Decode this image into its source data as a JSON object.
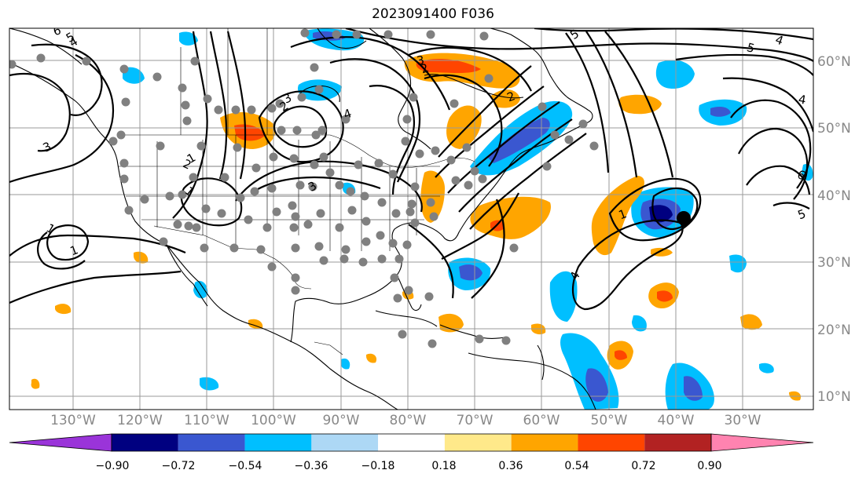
{
  "title": "2023091400 F036",
  "latitude_labels": [
    "60°N",
    "50°N",
    "40°N",
    "30°N",
    "20°N",
    "10°N"
  ],
  "longitude_labels": [
    "130°W",
    "120°W",
    "110°W",
    "100°W",
    "90°W",
    "80°W",
    "70°W",
    "60°W",
    "50°W",
    "40°W",
    "30°W"
  ],
  "colorbar": {
    "tick_labels": [
      "−0.90",
      "−0.72",
      "−0.54",
      "−0.36",
      "−0.18",
      "0.18",
      "0.36",
      "0.54",
      "0.72",
      "0.90"
    ],
    "colors": [
      "#9a34d9",
      "#000080",
      "#3a57d0",
      "#00bfff",
      "#add8f5",
      "#ffffff",
      "#ffe98a",
      "#ffa500",
      "#ff4500",
      "#b22222",
      "#ff83b0"
    ]
  },
  "contour_labels": [
    "6",
    "5",
    "4",
    "3",
    "2",
    "1",
    "1",
    "1",
    "3",
    "2",
    "3",
    "2",
    "5",
    "4",
    "5",
    "4",
    "6",
    "5",
    "3",
    "4",
    "4",
    "1",
    "1",
    "2"
  ],
  "colors": {
    "contour": "#000000",
    "gridline": "#9a9a9a",
    "station_marker": "#808080",
    "storm_marker": "#000000"
  }
}
